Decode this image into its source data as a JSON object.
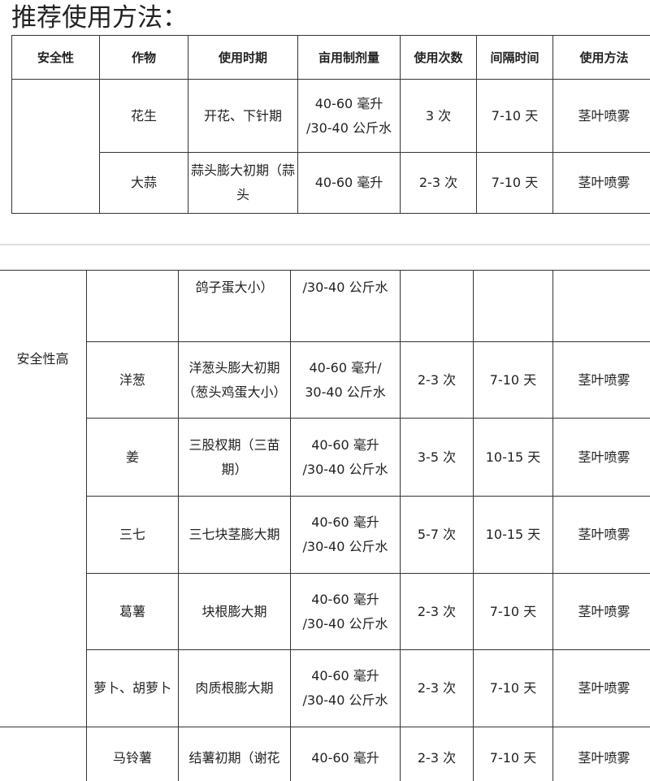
{
  "title": "推荐使用方法：",
  "table1": {
    "headers": [
      "安全性",
      "作物",
      "使用时期",
      "亩用制剂量",
      "使用次数",
      "间隔时间",
      "使用方法"
    ],
    "rows": [
      [
        "",
        "花生",
        "开花、下针期",
        "40-60 毫升\n/30-40 公斤水",
        "3 次",
        "7-10 天",
        "茎叶喷雾"
      ],
      [
        "",
        "大蒜",
        "蒜头膨大初期（蒜头",
        "40-60 毫升",
        "2-3 次",
        "7-10 天",
        "茎叶喷雾"
      ]
    ]
  },
  "table2": {
    "safety_label": "安全性高",
    "rows": [
      [
        "",
        "鸽子蛋大小）",
        "/30-40 公斤水",
        "",
        "",
        ""
      ],
      [
        "洋葱",
        "洋葱头膨大初期\n（葱头鸡蛋大小）",
        "40-60 毫升/\n30-40 公斤水",
        "2-3 次",
        "7-10 天",
        "茎叶喷雾"
      ],
      [
        "姜",
        "三股杈期（三苗\n期）",
        "40-60 毫升\n/30-40 公斤水",
        "3-5 次",
        "10-15 天",
        "茎叶喷雾"
      ],
      [
        "三七",
        "三七块茎膨大期",
        "40-60 毫升\n/30-40 公斤水",
        "5-7 次",
        "10-15 天",
        "茎叶喷雾"
      ],
      [
        "葛薯",
        "块根膨大期",
        "40-60 毫升\n/30-40 公斤水",
        "2-3 次",
        "7-10 天",
        "茎叶喷雾"
      ],
      [
        "萝卜、胡萝卜",
        "肉质根膨大期",
        "40-60 毫升\n/30-40 公斤水",
        "2-3 次",
        "7-10 天",
        "茎叶喷雾"
      ],
      [
        "马铃薯",
        "结薯初期（谢花",
        "40-60 毫升",
        "2-3 次",
        "7-10 天",
        "茎叶喷雾"
      ]
    ]
  }
}
